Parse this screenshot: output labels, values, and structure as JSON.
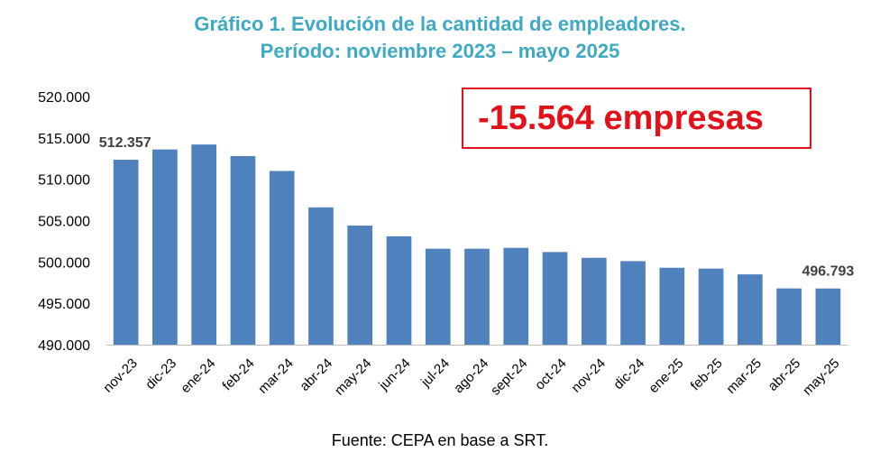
{
  "chart_data": {
    "type": "bar",
    "title": "Gráfico 1. Evolución de la cantidad de empleadores.",
    "subtitle": "Período: noviembre 2023 – mayo 2025",
    "xlabel": "",
    "ylabel": "",
    "ylim": [
      490000,
      520000
    ],
    "yticks": [
      {
        "value": 490000,
        "label": "490.000"
      },
      {
        "value": 495000,
        "label": "495.000"
      },
      {
        "value": 500000,
        "label": "500.000"
      },
      {
        "value": 505000,
        "label": "505.000"
      },
      {
        "value": 510000,
        "label": "510.000"
      },
      {
        "value": 515000,
        "label": "515.000"
      },
      {
        "value": 520000,
        "label": "520.000"
      }
    ],
    "categories": [
      "nov-23",
      "dic-23",
      "ene-24",
      "feb-24",
      "mar-24",
      "abr-24",
      "may-24",
      "jun-24",
      "jul-24",
      "ago-24",
      "sept-24",
      "oct-24",
      "nov-24",
      "dic-24",
      "ene-25",
      "feb-25",
      "mar-25",
      "abr-25",
      "may-25"
    ],
    "values": [
      512357,
      513600,
      514200,
      512800,
      511000,
      506600,
      504400,
      503100,
      501600,
      501600,
      501700,
      501200,
      500500,
      500100,
      499300,
      499200,
      498500,
      496800,
      496793
    ],
    "bar_color": "#4f81bd",
    "data_labels": [
      {
        "index": 0,
        "text": "512.357"
      },
      {
        "index": 18,
        "text": "496.793"
      }
    ],
    "grid": false
  },
  "callout": {
    "text": "-15.564 empresas",
    "color": "#e4111a"
  },
  "source": "Fuente: CEPA en base a SRT.",
  "title_color": "#3da9c2"
}
